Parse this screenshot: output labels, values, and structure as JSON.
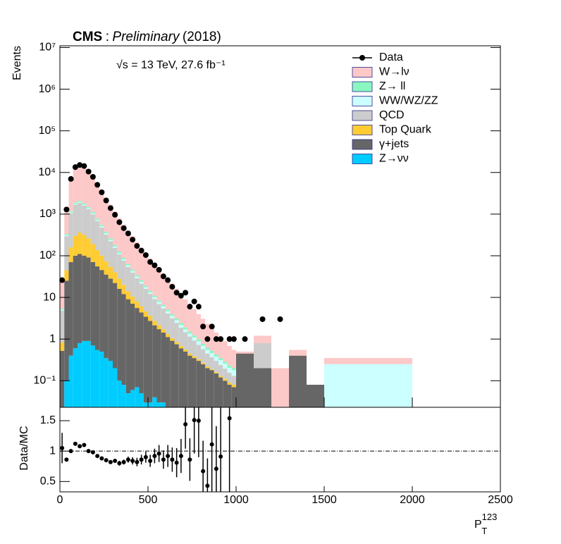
{
  "chart_data": {
    "type": "stacked_histogram",
    "title_parts": [
      "CMS",
      ":",
      "Preliminary",
      "(2018)"
    ],
    "energy_label": "√s = 13 TeV, 27.6 fb⁻¹",
    "y_label": "Events",
    "x_label": "P",
    "x_label_sub": "T",
    "x_label_sup": "123",
    "bins": [
      0,
      25,
      50,
      75,
      100,
      125,
      150,
      175,
      200,
      225,
      250,
      275,
      300,
      325,
      350,
      375,
      400,
      425,
      450,
      475,
      500,
      525,
      550,
      575,
      600,
      625,
      650,
      675,
      700,
      725,
      750,
      775,
      800,
      825,
      850,
      875,
      900,
      925,
      950,
      975,
      1000,
      1100,
      1200,
      1300,
      1400,
      1500,
      2000
    ],
    "xlim": [
      0,
      2500
    ],
    "xticks": [
      0,
      500,
      1000,
      1500,
      2000,
      2500
    ],
    "ylim": [
      0.023,
      11000000
    ],
    "yscale": "log",
    "yticks": [
      {
        "value": 0.1,
        "label": "10⁻¹"
      },
      1,
      10,
      {
        "value": 100,
        "label": "10²"
      },
      {
        "value": 1000,
        "label": "10³"
      },
      {
        "value": 10000,
        "label": "10⁴"
      },
      {
        "value": 100000,
        "label": "10⁵"
      },
      {
        "value": 1000000,
        "label": "10⁶"
      },
      {
        "value": 10000000,
        "label": "10⁷"
      }
    ],
    "series": [
      {
        "name": "W→lν",
        "color": "#fcc8c8",
        "values": [
          19,
          1170,
          5825,
          10120,
          11925,
          11180,
          9020,
          6880,
          4720,
          3250,
          2126,
          1440,
          970,
          674,
          471,
          336,
          245,
          176,
          130,
          96,
          71,
          53,
          40,
          31,
          23,
          17.5,
          13,
          9.5,
          7,
          5.5,
          4,
          3,
          2.3,
          1.7,
          1.3,
          1,
          0.8,
          0.6,
          0.45,
          0.35,
          0.05,
          0.4,
          0.2,
          0.15,
          0,
          0.1
        ]
      },
      {
        "name": "Z→ ll",
        "color": "#88f8c0",
        "values": [
          0.3,
          20,
          70,
          110,
          130,
          120,
          100,
          75,
          55,
          40,
          28,
          20,
          14,
          10,
          7,
          5,
          3.8,
          2.8,
          2.1,
          1.6,
          1.2,
          0.9,
          0.7,
          0.55,
          0.45,
          0.35,
          0.3,
          0.25,
          0.2,
          0.16,
          0.13,
          0.1,
          0.08,
          0.07,
          0.06,
          0.05,
          0.04,
          0.03,
          0.03,
          0.02,
          0,
          0,
          0,
          0,
          0,
          0
        ]
      },
      {
        "name": "WW/WZ/ZZ",
        "color": "#ccffff",
        "values": [
          0.2,
          15,
          45,
          70,
          85,
          80,
          70,
          55,
          40,
          30,
          22,
          16,
          11,
          8,
          6,
          4.5,
          3.5,
          2.6,
          2.0,
          1.6,
          1.2,
          1.0,
          0.8,
          0.7,
          0.55,
          0.45,
          0.38,
          0.3,
          0.25,
          0.2,
          0.18,
          0.15,
          0.12,
          0.1,
          0.09,
          0.08,
          0.07,
          0.06,
          0.05,
          0.05,
          0,
          0,
          0,
          0,
          0,
          0.25
        ]
      },
      {
        "name": "QCD",
        "color": "#cccccc",
        "values": [
          4,
          250,
          900,
          1400,
          1500,
          1300,
          1050,
          800,
          550,
          380,
          250,
          170,
          115,
          80,
          56,
          40,
          29,
          21,
          15.5,
          11.5,
          8.5,
          6.4,
          4.8,
          3.7,
          2.8,
          2.1,
          1.6,
          1.2,
          0.9,
          0.7,
          0.53,
          0.4,
          0.3,
          0.23,
          0.18,
          0.14,
          0.11,
          0.085,
          0.065,
          0.05,
          0,
          0.6,
          0,
          0,
          0,
          0
        ]
      },
      {
        "name": "Top Quark",
        "color": "#ffcc33",
        "values": [
          0.3,
          20,
          90,
          200,
          250,
          220,
          170,
          120,
          80,
          55,
          38,
          26,
          18,
          12,
          8,
          5,
          3.5,
          2.4,
          1.7,
          1.2,
          0.9,
          0.6,
          0.45,
          0.3,
          0.2,
          0.15,
          0.1,
          0.08,
          0.06,
          0.05,
          0.04,
          0.03,
          0.02,
          0.02,
          0.01,
          0.01,
          0.01,
          0.01,
          0.01,
          0.01,
          0,
          0,
          0,
          0,
          0,
          0
        ]
      },
      {
        "name": "γ+jets",
        "color": "#666666",
        "values": [
          0.5,
          25,
          70,
          100,
          110,
          100,
          90,
          70,
          55,
          45,
          35,
          28,
          22,
          16,
          12,
          9,
          7,
          5.5,
          4.3,
          3.4,
          2.7,
          2.1,
          1.7,
          1.4,
          1.1,
          0.9,
          0.75,
          0.6,
          0.5,
          0.4,
          0.35,
          0.3,
          0.25,
          0.2,
          0.18,
          0.15,
          0.12,
          0.1,
          0.08,
          0.07,
          0.45,
          0.2,
          0,
          0.4,
          0.08,
          0
        ]
      },
      {
        "name": "Z→νν",
        "color": "#00ccff",
        "values": [
          0.02,
          0.1,
          0.4,
          0.6,
          0.8,
          0.9,
          0.9,
          0.7,
          0.55,
          0.5,
          0.35,
          0.3,
          0.2,
          0.1,
          0.08,
          0.05,
          0.06,
          0.07,
          0.05,
          0.03,
          0.03,
          0.04,
          0.03,
          0.03,
          0.02,
          0.01,
          0,
          0,
          0,
          0,
          0,
          0,
          0,
          0,
          0,
          0,
          0,
          0,
          0,
          0,
          0,
          0,
          0,
          0,
          0,
          0
        ]
      }
    ],
    "data": {
      "name": "Data",
      "color": "#000000",
      "values": [
        26,
        1290,
        7000,
        13440,
        15120,
        14300,
        10500,
        7840,
        5060,
        3344,
        2125,
        1394,
        966,
        640,
        459,
        344,
        244,
        172,
        133,
        104,
        71,
        59,
        46,
        32,
        26,
        18,
        13,
        11,
        13,
        6,
        8,
        6,
        2,
        1,
        2,
        1,
        1,
        null,
        1,
        1,
        1,
        3,
        3,
        null,
        null,
        null
      ]
    },
    "ratio": {
      "y_label": "Data/MC",
      "ylim": [
        0.33,
        1.72
      ],
      "yticks": [
        0.5,
        1,
        1.5
      ],
      "reference": 1,
      "values": [
        1.05,
        0.86,
        1.0,
        1.12,
        1.08,
        1.1,
        1.0,
        0.98,
        0.92,
        0.88,
        0.85,
        0.82,
        0.84,
        0.8,
        0.82,
        0.86,
        0.84,
        0.82,
        0.86,
        0.9,
        0.84,
        0.92,
        0.96,
        0.86,
        0.92,
        0.86,
        0.81,
        0.92,
        1.44,
        0.86,
        1.51,
        1.5,
        0.67,
        0.43,
        1.11,
        0.71,
        0.91,
        null,
        1.54,
        null,
        null,
        null,
        null,
        null,
        null,
        null
      ],
      "errors": [
        0.25,
        0.03,
        0.01,
        0.01,
        0.01,
        0.01,
        0.01,
        0.01,
        0.02,
        0.02,
        0.02,
        0.03,
        0.03,
        0.04,
        0.04,
        0.05,
        0.06,
        0.07,
        0.08,
        0.09,
        0.1,
        0.12,
        0.14,
        0.15,
        0.18,
        0.2,
        0.24,
        0.28,
        0.4,
        0.35,
        0.55,
        0.6,
        0.5,
        0.45,
        0.8,
        0.7,
        0.9,
        null,
        1.5,
        null,
        null,
        null,
        null,
        null,
        null,
        null
      ]
    }
  }
}
